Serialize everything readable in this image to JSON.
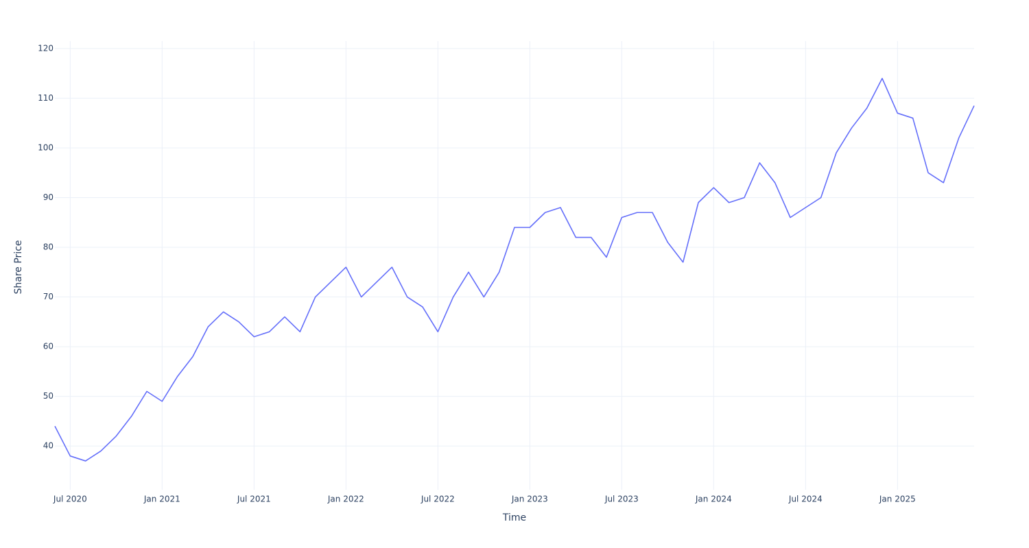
{
  "chart_data": {
    "type": "line",
    "x_label": "Time",
    "y_label": "Share Price",
    "color": "#636efa",
    "grid": true,
    "x": [
      "2020-06",
      "2020-07",
      "2020-08",
      "2020-09",
      "2020-10",
      "2020-11",
      "2020-12",
      "2021-01",
      "2021-02",
      "2021-03",
      "2021-04",
      "2021-05",
      "2021-06",
      "2021-07",
      "2021-08",
      "2021-09",
      "2021-10",
      "2021-11",
      "2021-12",
      "2022-01",
      "2022-02",
      "2022-03",
      "2022-04",
      "2022-05",
      "2022-06",
      "2022-07",
      "2022-08",
      "2022-09",
      "2022-10",
      "2022-11",
      "2022-12",
      "2023-01",
      "2023-02",
      "2023-03",
      "2023-04",
      "2023-05",
      "2023-06",
      "2023-07",
      "2023-08",
      "2023-09",
      "2023-10",
      "2023-11",
      "2023-12",
      "2024-01",
      "2024-02",
      "2024-03",
      "2024-04",
      "2024-05",
      "2024-06",
      "2024-07",
      "2024-08",
      "2024-09",
      "2024-10",
      "2024-11",
      "2024-12",
      "2025-01",
      "2025-02",
      "2025-03",
      "2025-04",
      "2025-05",
      "2025-06"
    ],
    "values": [
      44,
      38,
      37,
      39,
      42,
      46,
      51,
      49,
      54,
      58,
      64,
      67,
      65,
      62,
      63,
      66,
      63,
      70,
      73,
      76,
      70,
      73,
      76,
      70,
      68,
      63,
      70,
      75,
      70,
      75,
      84,
      84,
      87,
      88,
      82,
      82,
      78,
      86,
      87,
      87,
      81,
      77,
      89,
      92,
      89,
      90,
      97,
      93,
      86,
      88,
      90,
      99,
      104,
      108,
      114,
      107,
      106,
      95,
      93,
      102,
      108.5
    ],
    "xlim": [
      "2020-06",
      "2025-06"
    ],
    "xticks": [
      {
        "value": "2020-07",
        "label": "Jul 2020"
      },
      {
        "value": "2021-01",
        "label": "Jan 2021"
      },
      {
        "value": "2021-07",
        "label": "Jul 2021"
      },
      {
        "value": "2022-01",
        "label": "Jan 2022"
      },
      {
        "value": "2022-07",
        "label": "Jul 2022"
      },
      {
        "value": "2023-01",
        "label": "Jan 2023"
      },
      {
        "value": "2023-07",
        "label": "Jul 2023"
      },
      {
        "value": "2024-01",
        "label": "Jan 2024"
      },
      {
        "value": "2024-07",
        "label": "Jul 2024"
      },
      {
        "value": "2025-01",
        "label": "Jan 2025"
      }
    ],
    "ylim": [
      31.2,
      121.5
    ],
    "yticks": [
      40,
      50,
      60,
      70,
      80,
      90,
      100,
      110,
      120
    ]
  }
}
